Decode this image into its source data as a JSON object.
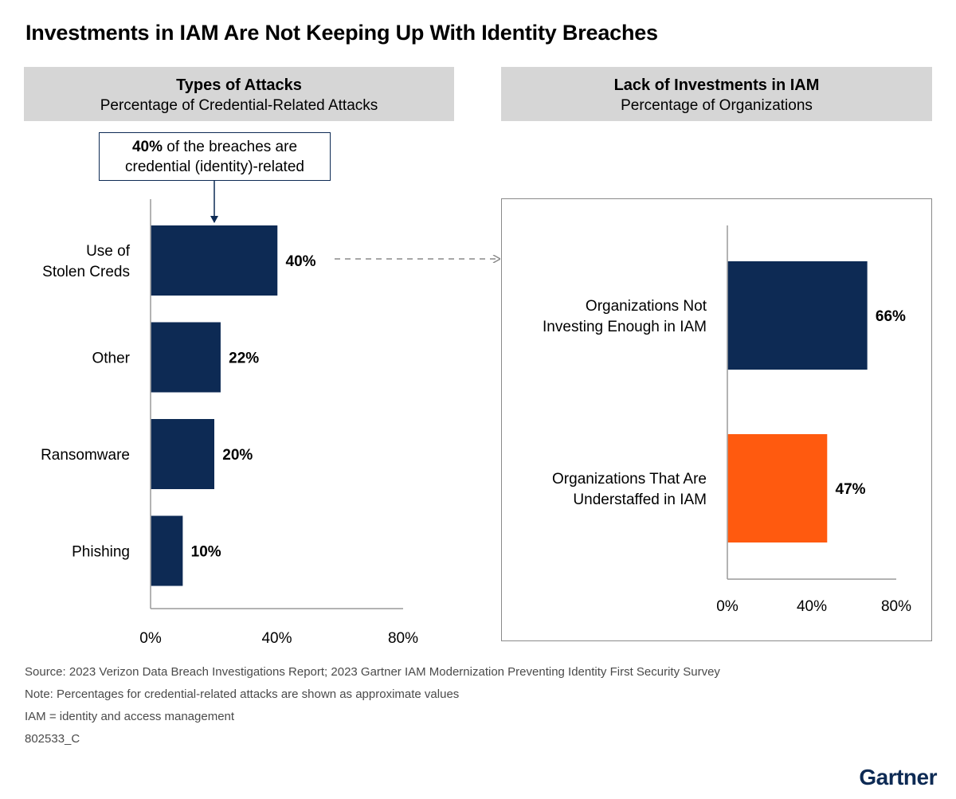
{
  "title": "Investments in IAM Are Not Keeping Up With Identity Breaches",
  "left_panel": {
    "title": "Types of Attacks",
    "subtitle": "Percentage of Credential-Related Attacks",
    "callout_bold": "40%",
    "callout_line1_rest": " of the breaches are",
    "callout_line2": "credential (identity)-related"
  },
  "right_panel": {
    "title": "Lack of Investments in IAM",
    "subtitle": "Percentage of Organizations"
  },
  "chart_data": [
    {
      "type": "bar",
      "orientation": "horizontal",
      "title": "Types of Attacks",
      "subtitle": "Percentage of Credential-Related Attacks",
      "categories": [
        [
          "Use of",
          "Stolen Creds"
        ],
        [
          "Other"
        ],
        [
          "Ransomware"
        ],
        [
          "Phishing"
        ]
      ],
      "values": [
        40,
        22,
        20,
        10
      ],
      "value_labels": [
        "40%",
        "22%",
        "20%",
        "10%"
      ],
      "colors": [
        "#0d2a54",
        "#0d2a54",
        "#0d2a54",
        "#0d2a54"
      ],
      "xlim": [
        0,
        80
      ],
      "ticks": [
        "0%",
        "40%",
        "80%"
      ],
      "grid": false
    },
    {
      "type": "bar",
      "orientation": "horizontal",
      "title": "Lack of Investments in IAM",
      "subtitle": "Percentage of Organizations",
      "categories": [
        [
          "Organizations Not",
          "Investing Enough in IAM"
        ],
        [
          "Organizations That Are",
          "Understaffed in IAM"
        ]
      ],
      "values": [
        66,
        47
      ],
      "value_labels": [
        "66%",
        "47%"
      ],
      "colors": [
        "#0d2a54",
        "#ff5a0f"
      ],
      "xlim": [
        0,
        80
      ],
      "ticks": [
        "0%",
        "40%",
        "80%"
      ],
      "grid": false
    }
  ],
  "footer": {
    "source": "Source: 2023 Verizon Data Breach Investigations Report; 2023 Gartner IAM Modernization Preventing Identity First Security Survey",
    "note": "Note: Percentages for credential-related attacks are shown as approximate values",
    "abbrev": "IAM = identity and access management",
    "code": "802533_C"
  },
  "brand": "Gartner",
  "colors": {
    "navy": "#0d2a54",
    "orange": "#ff5a0f",
    "header_bg": "#d6d6d6"
  }
}
